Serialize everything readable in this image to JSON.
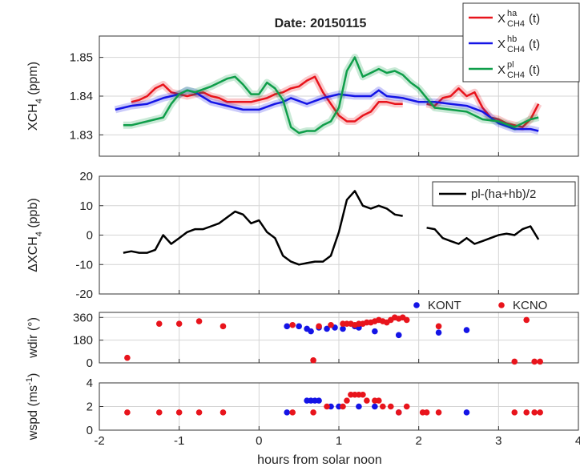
{
  "title": "Date: 20150115",
  "chart_data": [
    {
      "type": "line",
      "ylabel": [
        "XCH",
        "4",
        " (ppm)"
      ],
      "legend_base": "X",
      "legend_sub": "CH4",
      "legend_suffix": "(t)",
      "xlim": [
        -2,
        4
      ],
      "xticks": [
        -2,
        -1,
        0,
        1,
        2,
        3,
        4
      ],
      "ylim": [
        1.8245,
        1.8555
      ],
      "yticks": [
        1.83,
        1.84,
        1.85
      ],
      "grid": true,
      "series": [
        {
          "name": "ha",
          "color": "#e8141c",
          "x": [
            -1.6,
            -1.5,
            -1.4,
            -1.3,
            -1.2,
            -1.1,
            -1.0,
            -0.9,
            -0.8,
            -0.7,
            -0.6,
            -0.5,
            -0.4,
            -0.3,
            -0.2,
            -0.1,
            0,
            0.1,
            0.2,
            0.3,
            0.4,
            0.5,
            0.6,
            0.7,
            0.8,
            0.9,
            1.0,
            1.1,
            1.2,
            1.3,
            1.4,
            1.5,
            1.6,
            1.7,
            1.8,
            1.9,
            2.0,
            2.1,
            2.2,
            2.3,
            2.4,
            2.5,
            2.6,
            2.7,
            2.8,
            2.9,
            3.0,
            3.1,
            3.2,
            3.3,
            3.4,
            3.5
          ],
          "values": [
            1.8385,
            1.839,
            1.84,
            1.842,
            1.843,
            1.841,
            1.8405,
            1.84,
            1.8405,
            1.841,
            1.84,
            1.8395,
            1.8385,
            1.8385,
            1.8385,
            1.8385,
            1.839,
            1.8395,
            1.8405,
            1.841,
            1.842,
            1.8425,
            1.844,
            1.845,
            1.841,
            1.838,
            1.835,
            1.8335,
            1.8335,
            1.835,
            1.836,
            1.8385,
            1.8385,
            1.838,
            1.838,
            null,
            null,
            1.838,
            1.8375,
            1.8395,
            1.84,
            1.842,
            1.84,
            1.841,
            1.837,
            1.8345,
            1.834,
            1.833,
            1.8325,
            1.832,
            1.834,
            1.838
          ]
        },
        {
          "name": "hb",
          "color": "#1414e6",
          "x": [
            -1.8,
            -1.6,
            -1.4,
            -1.2,
            -1.0,
            -0.9,
            -0.8,
            -0.6,
            -0.4,
            -0.2,
            0,
            0.2,
            0.3,
            0.4,
            0.6,
            0.8,
            1.0,
            1.2,
            1.4,
            1.5,
            1.6,
            1.8,
            2.0,
            2.2,
            2.4,
            2.6,
            2.8,
            3.0,
            3.2,
            3.4,
            3.5
          ],
          "values": [
            1.8365,
            1.8375,
            1.838,
            1.8395,
            1.8405,
            1.8415,
            1.841,
            1.8385,
            1.8375,
            1.8365,
            1.8365,
            1.838,
            1.8385,
            1.8395,
            1.838,
            1.8395,
            1.8405,
            1.84,
            1.84,
            1.8415,
            1.84,
            1.8395,
            1.8385,
            1.8385,
            1.838,
            1.8375,
            1.836,
            1.833,
            1.8315,
            1.8315,
            1.831
          ]
        },
        {
          "name": "pl",
          "color": "#0f9e4a",
          "x": [
            -1.7,
            -1.6,
            -1.4,
            -1.2,
            -1.1,
            -1.0,
            -0.9,
            -0.8,
            -0.6,
            -0.4,
            -0.3,
            -0.2,
            -0.1,
            0,
            0.1,
            0.2,
            0.3,
            0.4,
            0.5,
            0.6,
            0.7,
            0.8,
            0.9,
            1.0,
            1.1,
            1.2,
            1.3,
            1.4,
            1.5,
            1.6,
            1.7,
            1.8,
            1.9,
            2.0,
            2.1,
            2.2,
            2.4,
            2.6,
            2.8,
            3.0,
            3.2,
            3.3,
            3.4,
            3.5
          ],
          "values": [
            1.8325,
            1.8325,
            1.8335,
            1.8345,
            1.838,
            1.8405,
            1.8415,
            1.841,
            1.8425,
            1.8445,
            1.845,
            1.843,
            1.8405,
            1.8405,
            1.8435,
            1.842,
            1.839,
            1.832,
            1.8305,
            1.831,
            1.831,
            1.8325,
            1.8335,
            1.837,
            1.8465,
            1.85,
            1.845,
            1.846,
            1.847,
            1.846,
            1.8465,
            1.8455,
            1.8435,
            1.842,
            1.8395,
            1.837,
            1.8365,
            1.836,
            1.834,
            1.8335,
            1.832,
            1.833,
            1.834,
            1.8345
          ]
        }
      ]
    },
    {
      "type": "line",
      "ylabel": [
        "ΔXCH",
        "4",
        " (ppb)"
      ],
      "xlim": [
        -2,
        4
      ],
      "xticks": [
        -2,
        -1,
        0,
        1,
        2,
        3,
        4
      ],
      "ylim": [
        -20,
        20
      ],
      "yticks": [
        -20,
        -10,
        0,
        10,
        20
      ],
      "grid": true,
      "series": [
        {
          "name": "pl-(ha+hb)/2",
          "color": "#000000",
          "x": [
            -1.7,
            -1.6,
            -1.5,
            -1.4,
            -1.3,
            -1.2,
            -1.1,
            -1.0,
            -0.9,
            -0.8,
            -0.7,
            -0.6,
            -0.5,
            -0.4,
            -0.3,
            -0.2,
            -0.1,
            0,
            0.1,
            0.2,
            0.3,
            0.4,
            0.5,
            0.6,
            0.7,
            0.8,
            0.9,
            1.0,
            1.1,
            1.2,
            1.3,
            1.4,
            1.5,
            1.6,
            1.7,
            1.8,
            1.9,
            2.0,
            2.1,
            2.2,
            2.3,
            2.4,
            2.5,
            2.6,
            2.7,
            2.8,
            2.9,
            3.0,
            3.1,
            3.2,
            3.3,
            3.4,
            3.5
          ],
          "values": [
            -6,
            -5.5,
            -6,
            -6,
            -5,
            0,
            -3,
            -1,
            1,
            2,
            2,
            3,
            4,
            6,
            8,
            7,
            4,
            5,
            1,
            -1,
            -7,
            -9,
            -10,
            -9.5,
            -9,
            -9,
            -7,
            1,
            12,
            15,
            10,
            9,
            10,
            9,
            7,
            6.5,
            null,
            null,
            2.5,
            2,
            -1,
            -2,
            -3,
            -1,
            -3,
            -2,
            -1,
            0,
            0.5,
            0,
            2,
            3,
            -1.5
          ]
        }
      ]
    },
    {
      "type": "scatter",
      "ylabel": [
        "wdir (°)"
      ],
      "xlim": [
        -2,
        4
      ],
      "xticks": [
        -2,
        -1,
        0,
        1,
        2,
        3,
        4
      ],
      "ylim": [
        0,
        400
      ],
      "yticks": [
        0,
        180,
        360
      ],
      "grid": true,
      "series": [
        {
          "name": "KONT",
          "color": "#1414e6",
          "x": [
            0.35,
            0.5,
            0.6,
            0.65,
            0.75,
            0.85,
            0.95,
            1.05,
            1.2,
            1.25,
            1.45,
            1.75,
            2.25,
            2.6
          ],
          "values": [
            290,
            290,
            270,
            250,
            280,
            270,
            280,
            270,
            290,
            280,
            250,
            220,
            240,
            260
          ]
        },
        {
          "name": "KCNO",
          "color": "#e8141c",
          "x": [
            -1.65,
            -1.25,
            -1.0,
            -0.75,
            -0.45,
            0.42,
            0.68,
            0.75,
            0.9,
            1.05,
            1.1,
            1.15,
            1.2,
            1.25,
            1.3,
            1.35,
            1.4,
            1.45,
            1.5,
            1.55,
            1.6,
            1.65,
            1.7,
            1.75,
            1.8,
            1.85,
            2.25,
            3.2,
            3.35,
            3.45,
            3.52
          ],
          "values": [
            40,
            310,
            310,
            330,
            290,
            300,
            20,
            290,
            300,
            310,
            310,
            310,
            300,
            310,
            310,
            320,
            320,
            330,
            340,
            330,
            320,
            340,
            360,
            350,
            360,
            340,
            290,
            10,
            340,
            10,
            10
          ]
        }
      ]
    },
    {
      "type": "scatter",
      "ylabel": [
        "wspd (ms",
        "-1",
        ")"
      ],
      "xlabel": "hours from solar noon",
      "show_xtick_labels": true,
      "xlim": [
        -2,
        4
      ],
      "xticks": [
        -2,
        -1,
        0,
        1,
        2,
        3,
        4
      ],
      "ylim": [
        0,
        4
      ],
      "yticks": [
        0,
        2,
        4
      ],
      "grid": true,
      "series": [
        {
          "name": "KONT",
          "color": "#1414e6",
          "x": [
            0.35,
            0.6,
            0.65,
            0.7,
            0.75,
            0.9,
            1.0,
            1.25,
            1.45,
            1.75,
            2.6
          ],
          "values": [
            1.5,
            2.5,
            2.5,
            2.5,
            2.5,
            2,
            2,
            2,
            2,
            1.5,
            1.5
          ]
        },
        {
          "name": "KCNO",
          "color": "#e8141c",
          "x": [
            -1.65,
            -1.25,
            -1.0,
            -0.75,
            -0.45,
            0.42,
            0.68,
            0.85,
            1.05,
            1.1,
            1.15,
            1.2,
            1.25,
            1.3,
            1.35,
            1.45,
            1.5,
            1.55,
            1.65,
            1.75,
            1.85,
            2.05,
            2.1,
            2.25,
            3.2,
            3.35,
            3.45,
            3.52
          ],
          "values": [
            1.5,
            1.5,
            1.5,
            1.5,
            1.5,
            1.5,
            1.5,
            2,
            2,
            2.5,
            3,
            3,
            3,
            3,
            2.5,
            2.5,
            2.5,
            2,
            2,
            1.5,
            2,
            1.5,
            1.5,
            1.5,
            1.5,
            1.5,
            1.5,
            1.5
          ]
        }
      ]
    }
  ]
}
